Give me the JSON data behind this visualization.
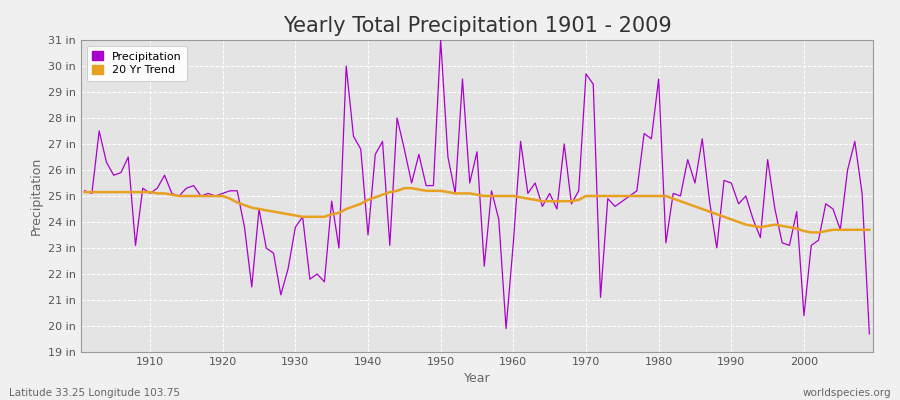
{
  "title": "Yearly Total Precipitation 1901 - 2009",
  "xlabel": "Year",
  "ylabel": "Precipitation",
  "lat_lon_label": "Latitude 33.25 Longitude 103.75",
  "watermark": "worldspecies.org",
  "years": [
    1901,
    1902,
    1903,
    1904,
    1905,
    1906,
    1907,
    1908,
    1909,
    1910,
    1911,
    1912,
    1913,
    1914,
    1915,
    1916,
    1917,
    1918,
    1919,
    1920,
    1921,
    1922,
    1923,
    1924,
    1925,
    1926,
    1927,
    1928,
    1929,
    1930,
    1931,
    1932,
    1933,
    1934,
    1935,
    1936,
    1937,
    1938,
    1939,
    1940,
    1941,
    1942,
    1943,
    1944,
    1945,
    1946,
    1947,
    1948,
    1949,
    1950,
    1951,
    1952,
    1953,
    1954,
    1955,
    1956,
    1957,
    1958,
    1959,
    1960,
    1961,
    1962,
    1963,
    1964,
    1965,
    1966,
    1967,
    1968,
    1969,
    1970,
    1971,
    1972,
    1973,
    1974,
    1975,
    1976,
    1977,
    1978,
    1979,
    1980,
    1981,
    1982,
    1983,
    1984,
    1985,
    1986,
    1987,
    1988,
    1989,
    1990,
    1991,
    1992,
    1993,
    1994,
    1995,
    1996,
    1997,
    1998,
    1999,
    2000,
    2001,
    2002,
    2003,
    2004,
    2005,
    2006,
    2007,
    2008,
    2009
  ],
  "precip": [
    25.2,
    25.1,
    27.5,
    26.3,
    25.8,
    25.9,
    26.5,
    23.1,
    25.3,
    25.1,
    25.3,
    25.8,
    25.1,
    25.0,
    25.3,
    25.4,
    25.0,
    25.1,
    25.0,
    25.1,
    25.2,
    25.2,
    23.8,
    21.5,
    24.5,
    23.0,
    22.8,
    21.2,
    22.2,
    23.8,
    24.2,
    21.8,
    22.0,
    21.7,
    24.8,
    23.0,
    30.0,
    27.3,
    26.8,
    23.5,
    26.6,
    27.1,
    23.1,
    28.0,
    26.8,
    25.5,
    26.6,
    25.4,
    25.4,
    31.0,
    26.5,
    25.1,
    29.5,
    25.5,
    26.7,
    22.3,
    25.2,
    24.1,
    19.9,
    23.2,
    27.1,
    25.1,
    25.5,
    24.6,
    25.1,
    24.5,
    27.0,
    24.7,
    25.2,
    29.7,
    29.3,
    21.1,
    24.9,
    24.6,
    24.8,
    25.0,
    25.2,
    27.4,
    27.2,
    29.5,
    23.2,
    25.1,
    25.0,
    26.4,
    25.5,
    27.2,
    24.8,
    23.0,
    25.6,
    25.5,
    24.7,
    25.0,
    24.1,
    23.4,
    26.4,
    24.5,
    23.2,
    23.1,
    24.4,
    20.4,
    23.1,
    23.3,
    24.7,
    24.5,
    23.7,
    26.0,
    27.1,
    25.1,
    19.7
  ],
  "trend": [
    25.15,
    25.15,
    25.15,
    25.15,
    25.15,
    25.15,
    25.15,
    25.15,
    25.15,
    25.15,
    25.1,
    25.1,
    25.05,
    25.0,
    25.0,
    25.0,
    25.0,
    25.0,
    25.0,
    25.0,
    24.9,
    24.75,
    24.65,
    24.55,
    24.5,
    24.45,
    24.4,
    24.35,
    24.3,
    24.25,
    24.2,
    24.2,
    24.2,
    24.2,
    24.3,
    24.35,
    24.5,
    24.6,
    24.7,
    24.85,
    24.95,
    25.05,
    25.15,
    25.2,
    25.3,
    25.3,
    25.25,
    25.2,
    25.2,
    25.2,
    25.15,
    25.1,
    25.1,
    25.1,
    25.05,
    25.0,
    25.0,
    25.0,
    25.0,
    25.0,
    24.95,
    24.9,
    24.85,
    24.8,
    24.8,
    24.8,
    24.8,
    24.8,
    24.85,
    25.0,
    25.0,
    25.0,
    25.0,
    25.0,
    25.0,
    25.0,
    25.0,
    25.0,
    25.0,
    25.0,
    25.0,
    24.9,
    24.8,
    24.7,
    24.6,
    24.5,
    24.4,
    24.3,
    24.2,
    24.1,
    24.0,
    23.9,
    23.85,
    23.8,
    23.85,
    23.9,
    23.85,
    23.8,
    23.75,
    23.65,
    23.6,
    23.6,
    23.65,
    23.7,
    23.7,
    23.7,
    23.7,
    23.7,
    23.7
  ],
  "precip_color": "#AA00CC",
  "trend_color": "#E8A020",
  "bg_color": "#F0F0F0",
  "plot_bg_color": "#E4E4E4",
  "grid_color": "#FFFFFF",
  "title_color": "#333333",
  "label_color": "#666666",
  "tick_color": "#555555",
  "ylim": [
    19,
    31
  ],
  "yticks": [
    19,
    20,
    21,
    22,
    23,
    24,
    25,
    26,
    27,
    28,
    29,
    30,
    31
  ],
  "ytick_labels": [
    "19 in",
    "20 in",
    "21 in",
    "22 in",
    "23 in",
    "24 in",
    "25 in",
    "26 in",
    "27 in",
    "28 in",
    "29 in",
    "30 in",
    "31 in"
  ],
  "xticks": [
    1910,
    1920,
    1930,
    1940,
    1950,
    1960,
    1970,
    1980,
    1990,
    2000
  ],
  "title_fontsize": 15,
  "label_fontsize": 9,
  "tick_fontsize": 8,
  "legend_fontsize": 8
}
